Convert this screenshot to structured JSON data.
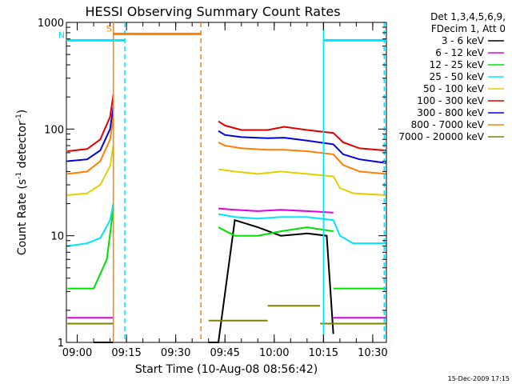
{
  "chart_data": {
    "type": "line",
    "title": "HESSI Observing Summary Count Rates",
    "xlabel": "Start Time (10-Aug-08 08:56:42)",
    "ylabel_main": "Count Rate (s",
    "ylabel_sup1": "-1",
    "ylabel_mid": " detector",
    "ylabel_sup2": "-1",
    "ylabel_end": ")",
    "yscale": "log",
    "ylim": [
      1,
      1000
    ],
    "xlim": [
      "08:56:42",
      "10:34:10"
    ],
    "grid": false,
    "legend_position": "top-right",
    "legend_header": [
      "Det 1,3,4,5,6,9,",
      "FDecim 1, Att 0"
    ],
    "x_ticks": [
      "09:00",
      "09:15",
      "09:30",
      "09:45",
      "10:00",
      "10:15",
      "10:30"
    ],
    "y_ticks": [
      "1",
      "10",
      "100",
      "1000"
    ],
    "series": [
      {
        "name": "3 - 6 keV",
        "color": "#000000",
        "segments": [
          {
            "x": [
              "09:05:00",
              "09:11:00"
            ],
            "y": [
              1.0,
              1.0
            ]
          },
          {
            "x": [
              "09:40:00",
              "09:43:00",
              "09:48:00",
              "09:55:00",
              "10:02:00",
              "10:10:00",
              "10:16:00",
              "10:18:00"
            ],
            "y": [
              1.0,
              1.0,
              14,
              12,
              10,
              10.5,
              10,
              1.2
            ]
          }
        ]
      },
      {
        "name": "6 - 12 keV",
        "color": "#e000e0",
        "segments": [
          {
            "x": [
              "08:57:00",
              "09:11:00"
            ],
            "y": [
              1.7,
              1.7
            ]
          },
          {
            "x": [
              "09:43:00",
              "09:48:00",
              "09:55:00",
              "10:02:00",
              "10:10:00",
              "10:18:00"
            ],
            "y": [
              18,
              17.5,
              17,
              17.5,
              17,
              16.5
            ]
          },
          {
            "x": [
              "10:18:00",
              "10:34:00"
            ],
            "y": [
              1.7,
              1.7
            ]
          }
        ]
      },
      {
        "name": "12 - 25 keV",
        "color": "#00e000",
        "segments": [
          {
            "x": [
              "08:57:00",
              "09:05:00",
              "09:09:00",
              "09:11:00"
            ],
            "y": [
              3.2,
              3.2,
              6,
              18
            ]
          },
          {
            "x": [
              "09:43:00",
              "09:48:00",
              "09:55:00",
              "10:02:00",
              "10:10:00",
              "10:18:00"
            ],
            "y": [
              12,
              10,
              10,
              11,
              12,
              11
            ]
          },
          {
            "x": [
              "10:18:00",
              "10:34:00"
            ],
            "y": [
              3.2,
              3.2
            ]
          }
        ]
      },
      {
        "name": "25 - 50 keV",
        "color": "#00e5ff",
        "segments": [
          {
            "x": [
              "08:57:00",
              "09:03:00",
              "09:07:00",
              "09:10:00",
              "09:11:00"
            ],
            "y": [
              8,
              8.5,
              9.5,
              14,
              20
            ]
          },
          {
            "x": [
              "09:43:00",
              "09:48:00",
              "09:55:00",
              "10:02:00",
              "10:10:00",
              "10:18:00",
              "10:20:00",
              "10:24:00",
              "10:34:00"
            ],
            "y": [
              16,
              15,
              14.5,
              15,
              15,
              14,
              10,
              8.5,
              8.5
            ]
          }
        ]
      },
      {
        "name": "50 - 100 keV",
        "color": "#e0d000",
        "segments": [
          {
            "x": [
              "08:57:00",
              "09:03:00",
              "09:07:00",
              "09:10:00",
              "09:11:00"
            ],
            "y": [
              24,
              25,
              30,
              45,
              70
            ]
          },
          {
            "x": [
              "09:43:00",
              "09:48:00",
              "09:55:00",
              "10:02:00",
              "10:10:00",
              "10:18:00",
              "10:20:00",
              "10:24:00",
              "10:34:00"
            ],
            "y": [
              42,
              40,
              38,
              40,
              38,
              36,
              28,
              25,
              24
            ]
          }
        ]
      },
      {
        "name": "100 - 300 keV",
        "color": "#e00000",
        "segments": [
          {
            "x": [
              "08:57:00",
              "09:03:00",
              "09:07:00",
              "09:10:00",
              "09:11:00"
            ],
            "y": [
              62,
              65,
              80,
              130,
              210
            ]
          },
          {
            "x": [
              "09:43:00",
              "09:45:00",
              "09:50:00",
              "09:58:00",
              "10:03:00",
              "10:10:00",
              "10:18:00",
              "10:21:00",
              "10:26:00",
              "10:34:00"
            ],
            "y": [
              118,
              108,
              98,
              98,
              105,
              98,
              92,
              75,
              66,
              63
            ]
          }
        ]
      },
      {
        "name": "300 - 800 keV",
        "color": "#0000e0",
        "segments": [
          {
            "x": [
              "08:57:00",
              "09:03:00",
              "09:07:00",
              "09:10:00",
              "09:11:00"
            ],
            "y": [
              50,
              52,
              63,
              100,
              160
            ]
          },
          {
            "x": [
              "09:43:00",
              "09:45:00",
              "09:50:00",
              "09:58:00",
              "10:03:00",
              "10:10:00",
              "10:18:00",
              "10:21:00",
              "10:26:00",
              "10:34:00"
            ],
            "y": [
              96,
              88,
              84,
              82,
              83,
              78,
              72,
              58,
              52,
              48
            ]
          }
        ]
      },
      {
        "name": "800 - 7000 keV",
        "color": "#ff7f00",
        "segments": [
          {
            "x": [
              "08:57:00",
              "09:03:00",
              "09:07:00",
              "09:10:00",
              "09:11:00"
            ],
            "y": [
              38,
              40,
              50,
              80,
              130
            ]
          },
          {
            "x": [
              "09:43:00",
              "09:45:00",
              "09:50:00",
              "09:58:00",
              "10:03:00",
              "10:10:00",
              "10:18:00",
              "10:21:00",
              "10:26:00",
              "10:34:00"
            ],
            "y": [
              75,
              70,
              66,
              64,
              64,
              62,
              58,
              46,
              40,
              38
            ]
          }
        ]
      },
      {
        "name": "7000 - 20000 keV",
        "color": "#808000",
        "segments": [
          {
            "x": [
              "08:57:00",
              "09:11:00"
            ],
            "y": [
              1.5,
              1.5
            ]
          },
          {
            "x": [
              "09:40:00",
              "09:58:00"
            ],
            "y": [
              1.6,
              1.6
            ]
          },
          {
            "x": [
              "09:58:00",
              "10:14:00"
            ],
            "y": [
              2.2,
              2.2
            ]
          },
          {
            "x": [
              "10:14:00",
              "10:34:00"
            ],
            "y": [
              1.5,
              1.5
            ]
          }
        ]
      }
    ],
    "attenuator_marks": [
      {
        "label": "S",
        "color": "#ff7f00",
        "x_start": "09:11:00",
        "x_end": "09:37:40",
        "y": 780
      },
      {
        "label": "N",
        "color": "#00e5ff",
        "x_start": "08:56:42",
        "x_end": "09:14:30",
        "y": 680
      },
      {
        "label": "",
        "color": "#00e5ff",
        "x_start": "10:15:00",
        "x_end": "10:34:10",
        "y": 680
      }
    ],
    "vertical_lines": [
      {
        "x": "09:11:00",
        "color": "#ff7f00",
        "style": "solid"
      },
      {
        "x": "09:14:30",
        "color": "#00e5ff",
        "style": "dashed"
      },
      {
        "x": "09:37:40",
        "color": "#ff7f00",
        "style": "dashed"
      },
      {
        "x": "10:15:00",
        "color": "#00e5ff",
        "style": "solid"
      },
      {
        "x": "10:33:30",
        "color": "#00e5ff",
        "style": "dashed"
      }
    ],
    "footer": "15-Dec-2009 17:15"
  }
}
